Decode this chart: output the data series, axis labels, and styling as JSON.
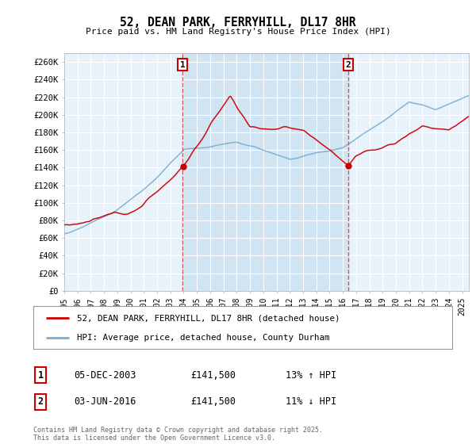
{
  "title": "52, DEAN PARK, FERRYHILL, DL17 8HR",
  "subtitle": "Price paid vs. HM Land Registry's House Price Index (HPI)",
  "ylabel_ticks": [
    "£0",
    "£20K",
    "£40K",
    "£60K",
    "£80K",
    "£100K",
    "£120K",
    "£140K",
    "£160K",
    "£180K",
    "£200K",
    "£220K",
    "£240K",
    "£260K"
  ],
  "ytick_values": [
    0,
    20000,
    40000,
    60000,
    80000,
    100000,
    120000,
    140000,
    160000,
    180000,
    200000,
    220000,
    240000,
    260000
  ],
  "ylim": [
    0,
    270000
  ],
  "xlim_year_start": 1995,
  "xlim_year_end": 2025.5,
  "marker1_year": 2003.92,
  "marker2_year": 2016.42,
  "marker1_label": "1",
  "marker2_label": "2",
  "marker1_price": 141500,
  "marker2_price": 141500,
  "legend_line1": "52, DEAN PARK, FERRYHILL, DL17 8HR (detached house)",
  "legend_line2": "HPI: Average price, detached house, County Durham",
  "annotation1_date": "05-DEC-2003",
  "annotation1_price": "£141,500",
  "annotation1_hpi": "13% ↑ HPI",
  "annotation2_date": "03-JUN-2016",
  "annotation2_price": "£141,500",
  "annotation2_hpi": "11% ↓ HPI",
  "footnote": "Contains HM Land Registry data © Crown copyright and database right 2025.\nThis data is licensed under the Open Government Licence v3.0.",
  "line1_color": "#cc0000",
  "line2_color": "#7aadd0",
  "vline_color": "#dd3333",
  "dot_color": "#cc0000",
  "shade_color": "#c8dff0",
  "grid_color": "#ffffff",
  "plot_bg": "#e8f2fa",
  "fig_bg": "#ffffff"
}
